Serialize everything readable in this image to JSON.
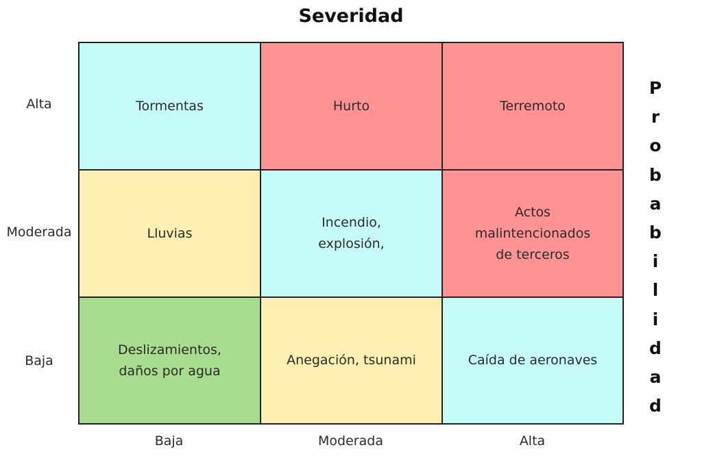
{
  "title": "Severidad",
  "y_axis_title": "Probabilidad",
  "row_labels": [
    "Alta",
    "Moderada",
    "Baja"
  ],
  "col_labels": [
    "Baja",
    "Moderada",
    "Alta"
  ],
  "colors": {
    "red": "#ff9393",
    "cyan": "#c5fcf8",
    "yellow": "#fdefb1",
    "green": "#a8dc8e"
  },
  "cells": [
    [
      {
        "text": "Tormentas",
        "color": "#c5fcf8"
      },
      {
        "text": "Hurto",
        "color": "#ff9393"
      },
      {
        "text": "Terremoto",
        "color": "#ff9393"
      }
    ],
    [
      {
        "text": "Lluvias",
        "color": "#fdefb1"
      },
      {
        "text": "Incendio,\nexplosión,",
        "color": "#c5fcf8"
      },
      {
        "text": "Actos\nmalintencionados\nde terceros",
        "color": "#ff9393"
      }
    ],
    [
      {
        "text": "Deslizamientos,\ndaños por agua",
        "color": "#a8dc8e"
      },
      {
        "text": "Anegación, tsunami",
        "color": "#fdefb1"
      },
      {
        "text": "Caída de aeronaves",
        "color": "#c5fcf8"
      }
    ]
  ]
}
